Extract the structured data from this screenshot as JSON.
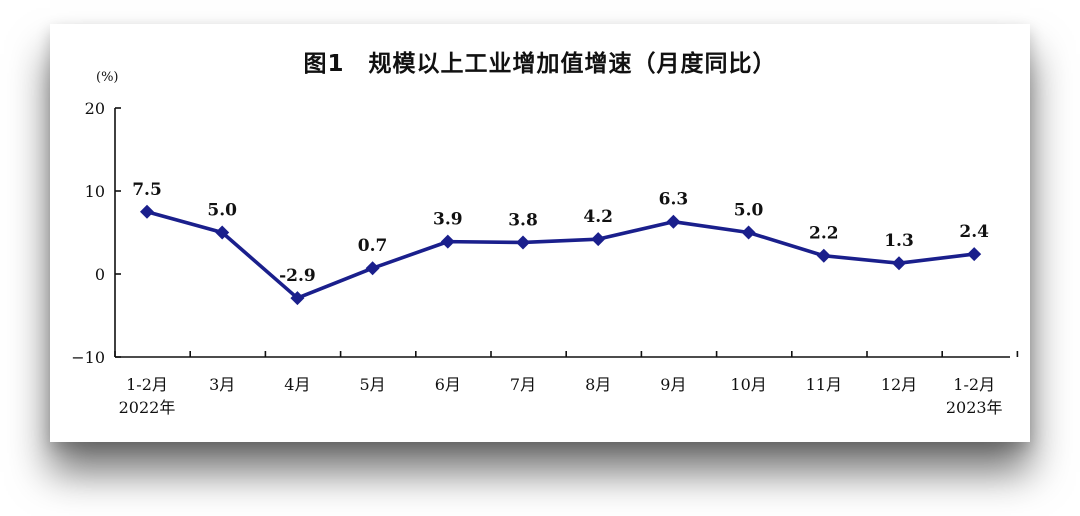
{
  "chart_data": {
    "type": "line",
    "title": "图1　规模以上工业增加值增速（月度同比）",
    "unit": "(%)",
    "categories": [
      "1-2月",
      "3月",
      "4月",
      "5月",
      "6月",
      "7月",
      "8月",
      "9月",
      "10月",
      "11月",
      "12月",
      "1-2月"
    ],
    "category_years": [
      "2022年",
      "",
      "",
      "",
      "",
      "",
      "",
      "",
      "",
      "",
      "",
      "2023年"
    ],
    "series": [
      {
        "values": [
          7.5,
          5.0,
          -2.9,
          0.7,
          3.9,
          3.8,
          4.2,
          6.3,
          5.0,
          2.2,
          1.3,
          2.4
        ]
      }
    ],
    "data_labels": [
      "7.5",
      "5.0",
      "-2.9",
      "0.7",
      "3.9",
      "3.8",
      "4.2",
      "6.3",
      "5.0",
      "2.2",
      "1.3",
      "2.4"
    ],
    "ylim": [
      -10,
      20
    ],
    "yticks": [
      20,
      10,
      0,
      -10
    ],
    "ytick_labels": [
      "20",
      "10",
      "0",
      "−10"
    ],
    "grid": false,
    "colors": {
      "line": "#1a1f8c",
      "axis": "#111111"
    }
  }
}
